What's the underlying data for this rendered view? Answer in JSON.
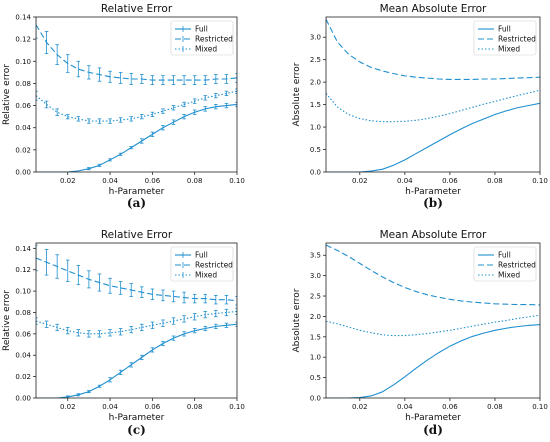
{
  "colors": {
    "series": "#1f8fcf",
    "axis": "#222222"
  },
  "chart_data": [
    {
      "type": "line",
      "panel_label": "(a)",
      "title": "Relative Error",
      "xlabel": "h-Parameter",
      "ylabel": "Relative error",
      "xlim": [
        0.005,
        0.1
      ],
      "ylim": [
        0,
        0.14
      ],
      "xticks": [
        "0.02",
        "0.04",
        "0.06",
        "0.08",
        "0.10"
      ],
      "yticks": [
        "0.00",
        "0.02",
        "0.04",
        "0.06",
        "0.08",
        "0.10",
        "0.12",
        "0.14"
      ],
      "error_bars": true,
      "legend": "top-right",
      "x": [
        0.005,
        0.01,
        0.015,
        0.02,
        0.025,
        0.03,
        0.035,
        0.04,
        0.045,
        0.05,
        0.055,
        0.06,
        0.065,
        0.07,
        0.075,
        0.08,
        0.085,
        0.09,
        0.095,
        0.1
      ],
      "series": [
        {
          "name": "Full",
          "style": "solid",
          "values": [
            0.0,
            0.0,
            0.0,
            0.0,
            0.001,
            0.003,
            0.006,
            0.011,
            0.016,
            0.022,
            0.028,
            0.034,
            0.04,
            0.045,
            0.05,
            0.054,
            0.057,
            0.059,
            0.06,
            0.061
          ],
          "errors": [
            0.0,
            0.0,
            0.0,
            0.0,
            0.0,
            0.001,
            0.001,
            0.001,
            0.001,
            0.001,
            0.002,
            0.002,
            0.002,
            0.002,
            0.002,
            0.002,
            0.002,
            0.002,
            0.002,
            0.002
          ]
        },
        {
          "name": "Restricted",
          "style": "dashed",
          "values": [
            0.133,
            0.117,
            0.106,
            0.098,
            0.093,
            0.09,
            0.088,
            0.086,
            0.085,
            0.084,
            0.084,
            0.083,
            0.083,
            0.083,
            0.083,
            0.083,
            0.083,
            0.084,
            0.084,
            0.085
          ],
          "errors": [
            0.012,
            0.01,
            0.009,
            0.008,
            0.007,
            0.006,
            0.006,
            0.005,
            0.005,
            0.005,
            0.004,
            0.004,
            0.004,
            0.004,
            0.004,
            0.004,
            0.004,
            0.004,
            0.004,
            0.004
          ]
        },
        {
          "name": "Mixed",
          "style": "dotted",
          "values": [
            0.069,
            0.061,
            0.054,
            0.05,
            0.048,
            0.046,
            0.046,
            0.046,
            0.047,
            0.048,
            0.05,
            0.052,
            0.055,
            0.058,
            0.061,
            0.064,
            0.067,
            0.069,
            0.071,
            0.073
          ],
          "errors": [
            0.004,
            0.003,
            0.003,
            0.002,
            0.002,
            0.002,
            0.002,
            0.002,
            0.002,
            0.002,
            0.002,
            0.002,
            0.002,
            0.002,
            0.002,
            0.002,
            0.002,
            0.002,
            0.002,
            0.002
          ]
        }
      ]
    },
    {
      "type": "line",
      "panel_label": "(b)",
      "title": "Mean Absolute Error",
      "xlabel": "h-Parameter",
      "ylabel": "Absolute error",
      "xlim": [
        0.005,
        0.1
      ],
      "ylim": [
        0,
        3.45
      ],
      "xticks": [
        "0.02",
        "0.04",
        "0.06",
        "0.08",
        "0.10"
      ],
      "yticks": [
        "0.0",
        "0.5",
        "1.0",
        "1.5",
        "2.0",
        "2.5",
        "3.0"
      ],
      "error_bars": false,
      "legend": "top-right",
      "x": [
        0.005,
        0.01,
        0.015,
        0.02,
        0.025,
        0.03,
        0.035,
        0.04,
        0.045,
        0.05,
        0.055,
        0.06,
        0.065,
        0.07,
        0.075,
        0.08,
        0.085,
        0.09,
        0.095,
        0.1
      ],
      "series": [
        {
          "name": "Full",
          "style": "solid",
          "values": [
            0.0,
            0.0,
            0.0,
            0.0,
            0.02,
            0.06,
            0.15,
            0.27,
            0.41,
            0.55,
            0.69,
            0.83,
            0.96,
            1.08,
            1.18,
            1.28,
            1.36,
            1.43,
            1.48,
            1.53
          ]
        },
        {
          "name": "Restricted",
          "style": "dashed",
          "values": [
            3.4,
            2.9,
            2.62,
            2.45,
            2.33,
            2.25,
            2.19,
            2.14,
            2.11,
            2.09,
            2.07,
            2.06,
            2.06,
            2.06,
            2.07,
            2.07,
            2.08,
            2.09,
            2.1,
            2.11
          ]
        },
        {
          "name": "Mixed",
          "style": "dotted",
          "values": [
            1.75,
            1.45,
            1.28,
            1.19,
            1.14,
            1.12,
            1.12,
            1.13,
            1.15,
            1.19,
            1.24,
            1.3,
            1.37,
            1.44,
            1.51,
            1.57,
            1.64,
            1.7,
            1.76,
            1.82
          ]
        }
      ]
    },
    {
      "type": "line",
      "panel_label": "(c)",
      "title": "Relative Error",
      "xlabel": "h-Parameter",
      "ylabel": "Relative error",
      "xlim": [
        0.005,
        0.1
      ],
      "ylim": [
        0,
        0.145
      ],
      "xticks": [
        "0.02",
        "0.04",
        "0.06",
        "0.08",
        "0.10"
      ],
      "yticks": [
        "0.00",
        "0.02",
        "0.04",
        "0.06",
        "0.08",
        "0.10",
        "0.12",
        "0.14"
      ],
      "error_bars": true,
      "legend": "top-right",
      "x": [
        0.005,
        0.01,
        0.015,
        0.02,
        0.025,
        0.03,
        0.035,
        0.04,
        0.045,
        0.05,
        0.055,
        0.06,
        0.065,
        0.07,
        0.075,
        0.08,
        0.085,
        0.09,
        0.095,
        0.1
      ],
      "series": [
        {
          "name": "Full",
          "style": "solid",
          "values": [
            0.0,
            0.0,
            0.0,
            0.001,
            0.003,
            0.006,
            0.011,
            0.017,
            0.024,
            0.031,
            0.038,
            0.045,
            0.051,
            0.056,
            0.06,
            0.063,
            0.065,
            0.067,
            0.068,
            0.069
          ],
          "errors": [
            0.0,
            0.0,
            0.0,
            0.001,
            0.001,
            0.001,
            0.001,
            0.002,
            0.002,
            0.002,
            0.002,
            0.002,
            0.002,
            0.002,
            0.002,
            0.002,
            0.002,
            0.002,
            0.002,
            0.002
          ]
        },
        {
          "name": "Restricted",
          "style": "dashed",
          "values": [
            0.131,
            0.127,
            0.123,
            0.119,
            0.115,
            0.111,
            0.108,
            0.105,
            0.103,
            0.101,
            0.099,
            0.097,
            0.096,
            0.095,
            0.094,
            0.093,
            0.093,
            0.092,
            0.092,
            0.091
          ],
          "errors": [
            0.012,
            0.012,
            0.011,
            0.01,
            0.009,
            0.008,
            0.008,
            0.007,
            0.006,
            0.006,
            0.005,
            0.005,
            0.005,
            0.005,
            0.005,
            0.004,
            0.004,
            0.004,
            0.004,
            0.004
          ]
        },
        {
          "name": "Mixed",
          "style": "dotted",
          "values": [
            0.072,
            0.069,
            0.066,
            0.063,
            0.061,
            0.06,
            0.06,
            0.061,
            0.062,
            0.064,
            0.066,
            0.068,
            0.07,
            0.072,
            0.074,
            0.076,
            0.078,
            0.079,
            0.08,
            0.081
          ],
          "errors": [
            0.003,
            0.003,
            0.003,
            0.003,
            0.003,
            0.003,
            0.003,
            0.003,
            0.003,
            0.003,
            0.003,
            0.003,
            0.003,
            0.003,
            0.003,
            0.003,
            0.003,
            0.003,
            0.003,
            0.003
          ]
        }
      ]
    },
    {
      "type": "line",
      "panel_label": "(d)",
      "title": "Mean Absolute Error",
      "xlabel": "h-Parameter",
      "ylabel": "Absolute error",
      "xlim": [
        0.005,
        0.1
      ],
      "ylim": [
        0,
        3.8
      ],
      "xticks": [
        "0.02",
        "0.04",
        "0.06",
        "0.08",
        "0.10"
      ],
      "yticks": [
        "0.0",
        "0.5",
        "1.0",
        "1.5",
        "2.0",
        "2.5",
        "3.0",
        "3.5"
      ],
      "error_bars": false,
      "legend": "top-right",
      "x": [
        0.005,
        0.01,
        0.015,
        0.02,
        0.025,
        0.03,
        0.035,
        0.04,
        0.045,
        0.05,
        0.055,
        0.06,
        0.065,
        0.07,
        0.075,
        0.08,
        0.085,
        0.09,
        0.095,
        0.1
      ],
      "series": [
        {
          "name": "Full",
          "style": "solid",
          "values": [
            0.0,
            0.0,
            0.0,
            0.01,
            0.05,
            0.15,
            0.32,
            0.52,
            0.73,
            0.93,
            1.11,
            1.27,
            1.4,
            1.51,
            1.59,
            1.66,
            1.71,
            1.75,
            1.78,
            1.8
          ]
        },
        {
          "name": "Restricted",
          "style": "dashed",
          "values": [
            3.75,
            3.62,
            3.47,
            3.3,
            3.13,
            2.97,
            2.83,
            2.71,
            2.61,
            2.53,
            2.47,
            2.42,
            2.38,
            2.35,
            2.33,
            2.31,
            2.3,
            2.29,
            2.29,
            2.28
          ]
        },
        {
          "name": "Mixed",
          "style": "dotted",
          "values": [
            1.88,
            1.82,
            1.74,
            1.66,
            1.6,
            1.55,
            1.53,
            1.53,
            1.55,
            1.58,
            1.62,
            1.66,
            1.71,
            1.76,
            1.81,
            1.86,
            1.9,
            1.95,
            1.99,
            2.03
          ]
        }
      ]
    }
  ]
}
